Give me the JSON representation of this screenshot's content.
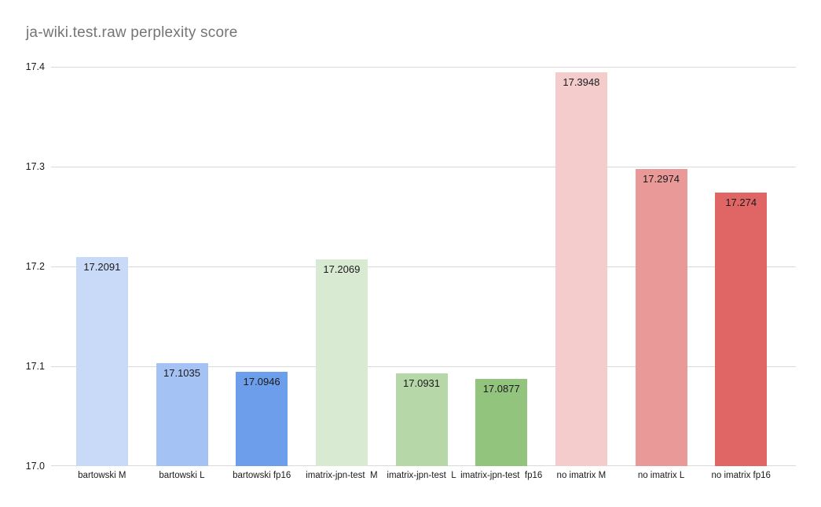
{
  "chart_data": {
    "type": "bar",
    "title": "ja-wiki.test.raw perplexity score",
    "categories": [
      "bartowski M",
      "bartowski L",
      "bartowski fp16",
      "imatrix-jpn-test  M",
      "imatrix-jpn-test  L",
      "imatrix-jpn-test  fp16",
      "no imatrix M",
      "no imatrix L",
      "no imatrix fp16"
    ],
    "values": [
      17.2091,
      17.1035,
      17.0946,
      17.2069,
      17.0931,
      17.0877,
      17.3948,
      17.2974,
      17.274
    ],
    "value_labels": [
      "17.2091",
      "17.1035",
      "17.0946",
      "17.2069",
      "17.0931",
      "17.0877",
      "17.3948",
      "17.2974",
      "17.274"
    ],
    "bar_colors": [
      "#c9daf8",
      "#a4c2f4",
      "#6d9eeb",
      "#d9ead3",
      "#b6d7a8",
      "#93c47d",
      "#f4cccc",
      "#ea9999",
      "#e06666"
    ],
    "xlabel": "",
    "ylabel": "",
    "ylim": [
      17.0,
      17.4
    ],
    "y_ticks": [
      17.0,
      17.1,
      17.2,
      17.3,
      17.4
    ],
    "y_tick_labels": [
      "17.0",
      "17.1",
      "17.2",
      "17.3",
      "17.4"
    ],
    "grid": true,
    "legend_position": "none",
    "value_label_position": "inside-top",
    "colors": {
      "background": "#ffffff",
      "title_text": "#757575",
      "axis_label_text": "#1a1a1a",
      "value_label_text": "#1a1a1a",
      "gridline": "#d9d9d9"
    }
  }
}
